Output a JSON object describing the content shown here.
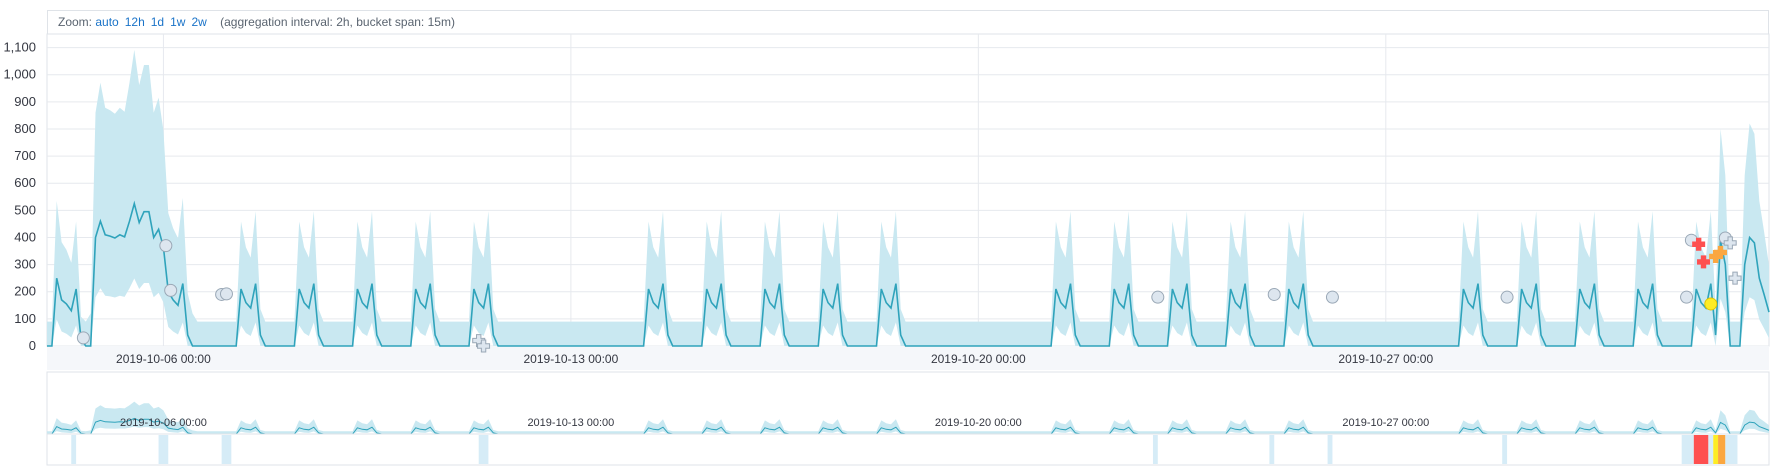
{
  "zoom": {
    "label": "Zoom:",
    "options": [
      "auto",
      "12h",
      "1d",
      "1w",
      "2w"
    ],
    "info": "(aggregation interval: 2h, bucket span: 15m)"
  },
  "colors": {
    "line": "#2fa3bb",
    "bounds": "#c9e8f1",
    "grid": "#e6e9ee",
    "anomaly_low": "#d6ecf7",
    "anomaly_warning": "#fdec25",
    "anomaly_minor": "#fba740",
    "anomaly_major": "#fe5050",
    "marker_fill": "#dde6ef",
    "marker_stroke": "#9aa8b6"
  },
  "chart_data": {
    "type": "line",
    "x_start": "2019-10-04 00:00",
    "interval_hours": 2,
    "yticks": [
      0,
      100,
      200,
      300,
      400,
      500,
      600,
      700,
      800,
      900,
      1000,
      1100
    ],
    "ytick_labels": [
      "0",
      "100",
      "200",
      "300",
      "400",
      "500",
      "600",
      "700",
      "800",
      "900",
      "1,000",
      "1,100"
    ],
    "ylim": [
      0,
      1150
    ],
    "xticks": [
      {
        "label": "2019-10-06 00:00",
        "hour": 48
      },
      {
        "label": "2019-10-13 00:00",
        "hour": 216
      },
      {
        "label": "2019-10-20 00:00",
        "hour": 384
      },
      {
        "label": "2019-10-27 00:00",
        "hour": 552
      }
    ],
    "x_end_hour": 710,
    "series": [
      {
        "role": "actual",
        "style": "line"
      },
      {
        "role": "model bounds",
        "style": "area"
      }
    ],
    "special_values": [
      {
        "hour": 4,
        "value": 250
      },
      {
        "hour": 6,
        "value": 170
      },
      {
        "hour": 8,
        "value": 155
      },
      {
        "hour": 10,
        "value": 130
      },
      {
        "hour": 12,
        "value": 210
      },
      {
        "hour": 14,
        "value": 25
      },
      {
        "hour": 16,
        "value": 0
      },
      {
        "hour": 18,
        "value": 0
      },
      {
        "hour": 20,
        "value": 400
      },
      {
        "hour": 22,
        "value": 460
      },
      {
        "hour": 24,
        "value": 410
      },
      {
        "hour": 26,
        "value": 405
      },
      {
        "hour": 28,
        "value": 398
      },
      {
        "hour": 30,
        "value": 410
      },
      {
        "hour": 32,
        "value": 402
      },
      {
        "hour": 34,
        "value": 460
      },
      {
        "hour": 36,
        "value": 525
      },
      {
        "hour": 38,
        "value": 455
      },
      {
        "hour": 40,
        "value": 495
      },
      {
        "hour": 42,
        "value": 495
      },
      {
        "hour": 44,
        "value": 400
      },
      {
        "hour": 46,
        "value": 430
      },
      {
        "hour": 48,
        "value": 365
      },
      {
        "hour": 50,
        "value": 200
      },
      {
        "hour": 52,
        "value": 170
      },
      {
        "hour": 54,
        "value": 150
      },
      {
        "hour": 56,
        "value": 230
      },
      {
        "hour": 58,
        "value": 40
      },
      {
        "hour": 690,
        "value": 390
      },
      {
        "hour": 692,
        "value": 300
      },
      {
        "hour": 694,
        "value": 0
      },
      {
        "hour": 696,
        "value": 0
      },
      {
        "hour": 698,
        "value": 0
      },
      {
        "hour": 700,
        "value": 300
      },
      {
        "hour": 702,
        "value": 400
      },
      {
        "hour": 704,
        "value": 380
      },
      {
        "hour": 706,
        "value": 250
      },
      {
        "hour": 708,
        "value": 190
      },
      {
        "hour": 710,
        "value": 125
      }
    ],
    "markers": [
      {
        "hour": 15,
        "value": 30,
        "shape": "circle",
        "severity": "low"
      },
      {
        "hour": 49,
        "value": 370,
        "shape": "circle",
        "severity": "low"
      },
      {
        "hour": 51,
        "value": 205,
        "shape": "circle",
        "severity": "low"
      },
      {
        "hour": 72,
        "value": 190,
        "shape": "circle",
        "severity": "low"
      },
      {
        "hour": 74,
        "value": 192,
        "shape": "circle",
        "severity": "low"
      },
      {
        "hour": 178,
        "value": 20,
        "shape": "cross",
        "severity": "low"
      },
      {
        "hour": 180,
        "value": 0,
        "shape": "cross",
        "severity": "low"
      },
      {
        "hour": 458,
        "value": 180,
        "shape": "circle",
        "severity": "low"
      },
      {
        "hour": 506,
        "value": 190,
        "shape": "circle",
        "severity": "low"
      },
      {
        "hour": 530,
        "value": 180,
        "shape": "circle",
        "severity": "low"
      },
      {
        "hour": 602,
        "value": 180,
        "shape": "circle",
        "severity": "low"
      },
      {
        "hour": 676,
        "value": 180,
        "shape": "circle",
        "severity": "low"
      },
      {
        "hour": 678,
        "value": 390,
        "shape": "circle",
        "severity": "low"
      },
      {
        "hour": 681,
        "value": 375,
        "shape": "cross",
        "severity": "major"
      },
      {
        "hour": 683,
        "value": 310,
        "shape": "cross",
        "severity": "major"
      },
      {
        "hour": 686,
        "value": 155,
        "shape": "circle",
        "severity": "warning"
      },
      {
        "hour": 688,
        "value": 330,
        "shape": "cross",
        "severity": "minor"
      },
      {
        "hour": 690,
        "value": 345,
        "shape": "cross",
        "severity": "minor"
      },
      {
        "hour": 692,
        "value": 398,
        "shape": "circle",
        "severity": "low"
      },
      {
        "hour": 694,
        "value": 380,
        "shape": "cross",
        "severity": "low"
      },
      {
        "hour": 696,
        "value": 250,
        "shape": "cross",
        "severity": "low"
      }
    ],
    "context_swimlane": [
      {
        "start_hour": 10,
        "end_hour": 12,
        "severity": "low"
      },
      {
        "start_hour": 46,
        "end_hour": 50,
        "severity": "low"
      },
      {
        "start_hour": 72,
        "end_hour": 76,
        "severity": "low"
      },
      {
        "start_hour": 178,
        "end_hour": 182,
        "severity": "low"
      },
      {
        "start_hour": 456,
        "end_hour": 458,
        "severity": "low"
      },
      {
        "start_hour": 504,
        "end_hour": 506,
        "severity": "low"
      },
      {
        "start_hour": 528,
        "end_hour": 530,
        "severity": "low"
      },
      {
        "start_hour": 600,
        "end_hour": 602,
        "severity": "low"
      },
      {
        "start_hour": 674,
        "end_hour": 679,
        "severity": "low"
      },
      {
        "start_hour": 679,
        "end_hour": 685,
        "severity": "major"
      },
      {
        "start_hour": 685,
        "end_hour": 687,
        "severity": "low"
      },
      {
        "start_hour": 687,
        "end_hour": 689,
        "severity": "warning"
      },
      {
        "start_hour": 689,
        "end_hour": 692,
        "severity": "minor"
      },
      {
        "start_hour": 692,
        "end_hour": 697,
        "severity": "low"
      }
    ]
  }
}
